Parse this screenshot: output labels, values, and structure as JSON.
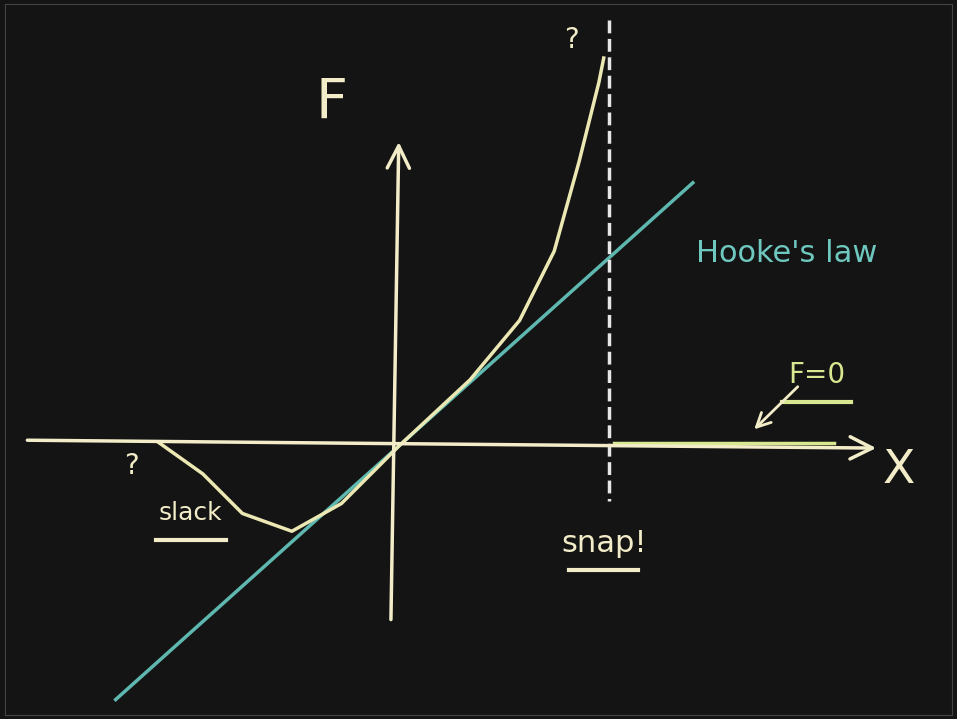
{
  "chart_data": {
    "type": "line",
    "x_label": "X",
    "y_label": "F",
    "xlim": [
      -3.98,
      5.59
    ],
    "ylim": [
      -2.72,
      4.47
    ],
    "tick_labels": false,
    "grid": false,
    "series": [
      {
        "type": "line",
        "color": "#5fb8b0",
        "line_style": "solid",
        "x": [
          -2.86,
          2.97
        ],
        "values": [
          -2.56,
          2.66
        ]
      },
      {
        "type": "line",
        "color": "#ece8b4",
        "line_style": "solid",
        "x": [
          -2.43,
          -1.98,
          -1.58,
          -1.08,
          -0.58,
          0.0,
          0.72,
          1.22,
          1.57,
          1.82,
          2.02,
          2.07
        ],
        "values": [
          0.04,
          -0.28,
          -0.68,
          -0.86,
          -0.58,
          0.0,
          0.67,
          1.27,
          1.97,
          2.87,
          3.67,
          3.92
        ]
      },
      {
        "type": "line",
        "color": "#e6e6e6",
        "line_style": "dashed",
        "x": [
          2.12,
          2.12
        ],
        "values": [
          4.3,
          -0.55
        ]
      },
      {
        "type": "line",
        "color": "#d8e890",
        "line_style": "solid",
        "x": [
          2.17,
          4.4
        ],
        "values": [
          0.03,
          0.03
        ]
      }
    ],
    "annotations": [
      "Hooke's law",
      "F=0",
      "snap!",
      "slack",
      "?",
      "?"
    ]
  }
}
